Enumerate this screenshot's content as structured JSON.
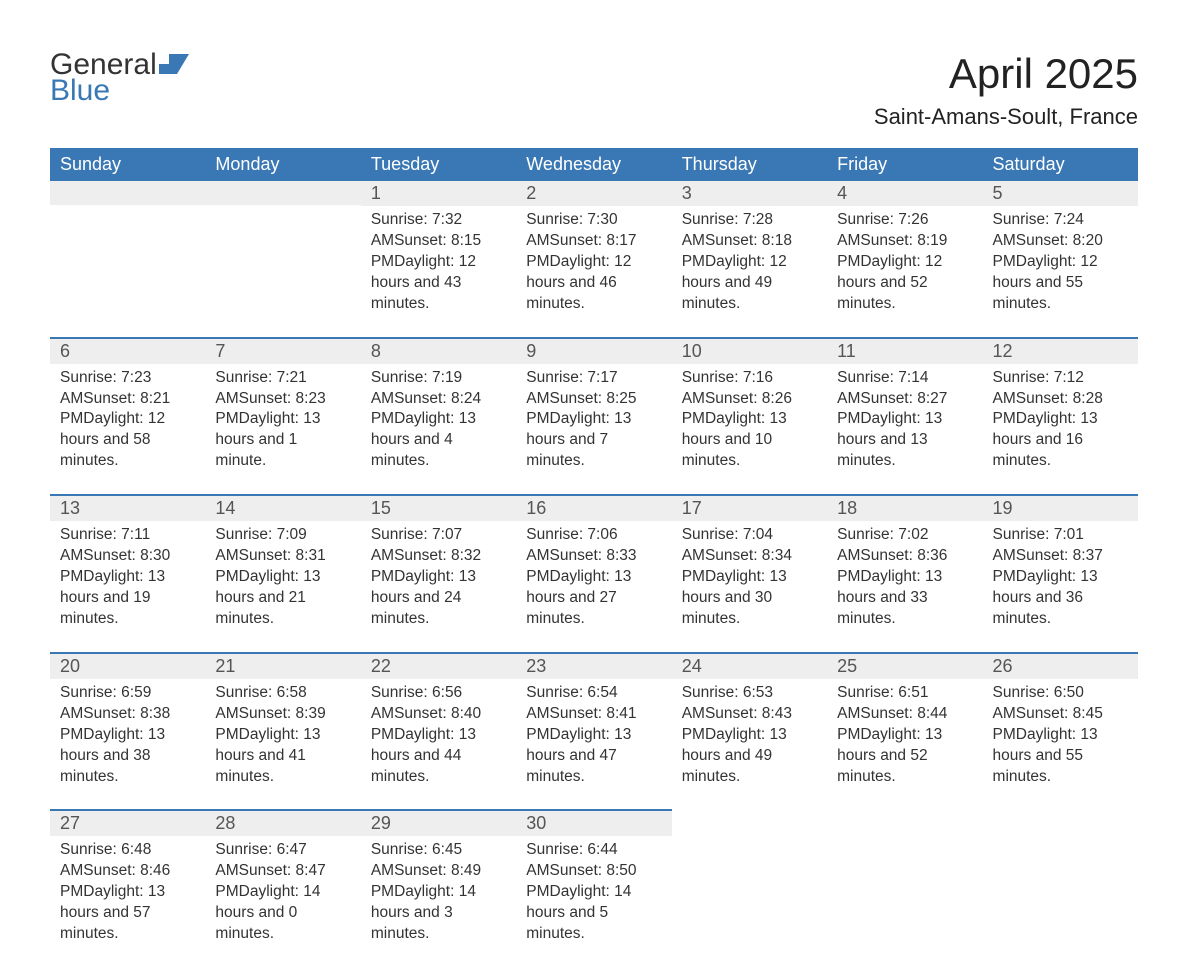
{
  "brand": {
    "general": "General",
    "blue": "Blue"
  },
  "title": "April 2025",
  "location": "Saint-Amans-Soult, France",
  "colors": {
    "header_bg": "#3a78b5",
    "header_text": "#ffffff",
    "daynum_bg": "#eeeeee",
    "rule": "#3a78b5",
    "body_text": "#333333",
    "logo_blue": "#3a78b5",
    "page_bg": "#ffffff"
  },
  "typography": {
    "month_title_fontsize": 42,
    "location_fontsize": 22,
    "weekday_fontsize": 18,
    "daynum_fontsize": 18,
    "body_fontsize": 15.5
  },
  "weekdays": [
    "Sunday",
    "Monday",
    "Tuesday",
    "Wednesday",
    "Thursday",
    "Friday",
    "Saturday"
  ],
  "weeks": [
    [
      null,
      null,
      {
        "n": "1",
        "sr": "Sunrise: 7:32 AM",
        "ss": "Sunset: 8:15 PM",
        "dl": "Daylight: 12 hours and 43 minutes."
      },
      {
        "n": "2",
        "sr": "Sunrise: 7:30 AM",
        "ss": "Sunset: 8:17 PM",
        "dl": "Daylight: 12 hours and 46 minutes."
      },
      {
        "n": "3",
        "sr": "Sunrise: 7:28 AM",
        "ss": "Sunset: 8:18 PM",
        "dl": "Daylight: 12 hours and 49 minutes."
      },
      {
        "n": "4",
        "sr": "Sunrise: 7:26 AM",
        "ss": "Sunset: 8:19 PM",
        "dl": "Daylight: 12 hours and 52 minutes."
      },
      {
        "n": "5",
        "sr": "Sunrise: 7:24 AM",
        "ss": "Sunset: 8:20 PM",
        "dl": "Daylight: 12 hours and 55 minutes."
      }
    ],
    [
      {
        "n": "6",
        "sr": "Sunrise: 7:23 AM",
        "ss": "Sunset: 8:21 PM",
        "dl": "Daylight: 12 hours and 58 minutes."
      },
      {
        "n": "7",
        "sr": "Sunrise: 7:21 AM",
        "ss": "Sunset: 8:23 PM",
        "dl": "Daylight: 13 hours and 1 minute."
      },
      {
        "n": "8",
        "sr": "Sunrise: 7:19 AM",
        "ss": "Sunset: 8:24 PM",
        "dl": "Daylight: 13 hours and 4 minutes."
      },
      {
        "n": "9",
        "sr": "Sunrise: 7:17 AM",
        "ss": "Sunset: 8:25 PM",
        "dl": "Daylight: 13 hours and 7 minutes."
      },
      {
        "n": "10",
        "sr": "Sunrise: 7:16 AM",
        "ss": "Sunset: 8:26 PM",
        "dl": "Daylight: 13 hours and 10 minutes."
      },
      {
        "n": "11",
        "sr": "Sunrise: 7:14 AM",
        "ss": "Sunset: 8:27 PM",
        "dl": "Daylight: 13 hours and 13 minutes."
      },
      {
        "n": "12",
        "sr": "Sunrise: 7:12 AM",
        "ss": "Sunset: 8:28 PM",
        "dl": "Daylight: 13 hours and 16 minutes."
      }
    ],
    [
      {
        "n": "13",
        "sr": "Sunrise: 7:11 AM",
        "ss": "Sunset: 8:30 PM",
        "dl": "Daylight: 13 hours and 19 minutes."
      },
      {
        "n": "14",
        "sr": "Sunrise: 7:09 AM",
        "ss": "Sunset: 8:31 PM",
        "dl": "Daylight: 13 hours and 21 minutes."
      },
      {
        "n": "15",
        "sr": "Sunrise: 7:07 AM",
        "ss": "Sunset: 8:32 PM",
        "dl": "Daylight: 13 hours and 24 minutes."
      },
      {
        "n": "16",
        "sr": "Sunrise: 7:06 AM",
        "ss": "Sunset: 8:33 PM",
        "dl": "Daylight: 13 hours and 27 minutes."
      },
      {
        "n": "17",
        "sr": "Sunrise: 7:04 AM",
        "ss": "Sunset: 8:34 PM",
        "dl": "Daylight: 13 hours and 30 minutes."
      },
      {
        "n": "18",
        "sr": "Sunrise: 7:02 AM",
        "ss": "Sunset: 8:36 PM",
        "dl": "Daylight: 13 hours and 33 minutes."
      },
      {
        "n": "19",
        "sr": "Sunrise: 7:01 AM",
        "ss": "Sunset: 8:37 PM",
        "dl": "Daylight: 13 hours and 36 minutes."
      }
    ],
    [
      {
        "n": "20",
        "sr": "Sunrise: 6:59 AM",
        "ss": "Sunset: 8:38 PM",
        "dl": "Daylight: 13 hours and 38 minutes."
      },
      {
        "n": "21",
        "sr": "Sunrise: 6:58 AM",
        "ss": "Sunset: 8:39 PM",
        "dl": "Daylight: 13 hours and 41 minutes."
      },
      {
        "n": "22",
        "sr": "Sunrise: 6:56 AM",
        "ss": "Sunset: 8:40 PM",
        "dl": "Daylight: 13 hours and 44 minutes."
      },
      {
        "n": "23",
        "sr": "Sunrise: 6:54 AM",
        "ss": "Sunset: 8:41 PM",
        "dl": "Daylight: 13 hours and 47 minutes."
      },
      {
        "n": "24",
        "sr": "Sunrise: 6:53 AM",
        "ss": "Sunset: 8:43 PM",
        "dl": "Daylight: 13 hours and 49 minutes."
      },
      {
        "n": "25",
        "sr": "Sunrise: 6:51 AM",
        "ss": "Sunset: 8:44 PM",
        "dl": "Daylight: 13 hours and 52 minutes."
      },
      {
        "n": "26",
        "sr": "Sunrise: 6:50 AM",
        "ss": "Sunset: 8:45 PM",
        "dl": "Daylight: 13 hours and 55 minutes."
      }
    ],
    [
      {
        "n": "27",
        "sr": "Sunrise: 6:48 AM",
        "ss": "Sunset: 8:46 PM",
        "dl": "Daylight: 13 hours and 57 minutes."
      },
      {
        "n": "28",
        "sr": "Sunrise: 6:47 AM",
        "ss": "Sunset: 8:47 PM",
        "dl": "Daylight: 14 hours and 0 minutes."
      },
      {
        "n": "29",
        "sr": "Sunrise: 6:45 AM",
        "ss": "Sunset: 8:49 PM",
        "dl": "Daylight: 14 hours and 3 minutes."
      },
      {
        "n": "30",
        "sr": "Sunrise: 6:44 AM",
        "ss": "Sunset: 8:50 PM",
        "dl": "Daylight: 14 hours and 5 minutes."
      },
      null,
      null,
      null
    ]
  ]
}
